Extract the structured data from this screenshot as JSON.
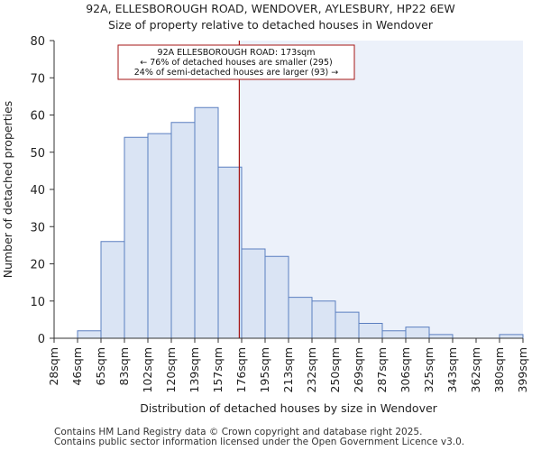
{
  "page": {
    "title_line1": "92A, ELLESBOROUGH ROAD, WENDOVER, AYLESBURY, HP22 6EW",
    "title_line2": "Size of property relative to detached houses in Wendover",
    "footer_line1": "Contains HM Land Registry data © Crown copyright and database right 2025.",
    "footer_line2": "Contains public sector information licensed under the Open Government Licence v3.0."
  },
  "colors": {
    "bar_fill": "#dae4f4",
    "bar_stroke": "#5b7fc0",
    "highlight_fill": "#ecf1fa",
    "marker_line": "#a61616",
    "annotation_border": "#a61616"
  },
  "chart_data": {
    "type": "bar",
    "title": "Size of property relative to detached houses in Wendover",
    "xlabel": "Distribution of detached houses by size in Wendover",
    "ylabel": "Number of detached properties",
    "ylim": [
      0,
      80
    ],
    "yticks": [
      0,
      10,
      20,
      30,
      40,
      50,
      60,
      70,
      80
    ],
    "bin_edges": [
      "28sqm",
      "46sqm",
      "65sqm",
      "83sqm",
      "102sqm",
      "120sqm",
      "139sqm",
      "157sqm",
      "176sqm",
      "195sqm",
      "213sqm",
      "232sqm",
      "250sqm",
      "269sqm",
      "287sqm",
      "306sqm",
      "325sqm",
      "343sqm",
      "362sqm",
      "380sqm",
      "399sqm"
    ],
    "values": [
      0,
      2,
      26,
      54,
      55,
      58,
      62,
      46,
      24,
      22,
      11,
      10,
      7,
      4,
      2,
      3,
      1,
      0,
      0,
      1
    ],
    "marker_bin_position": 7.9,
    "annotation": {
      "line1": "92A ELLESBOROUGH ROAD: 173sqm",
      "line2": "← 76% of detached houses are smaller (295)",
      "line3": "24% of semi-detached houses are larger (93) →"
    }
  }
}
